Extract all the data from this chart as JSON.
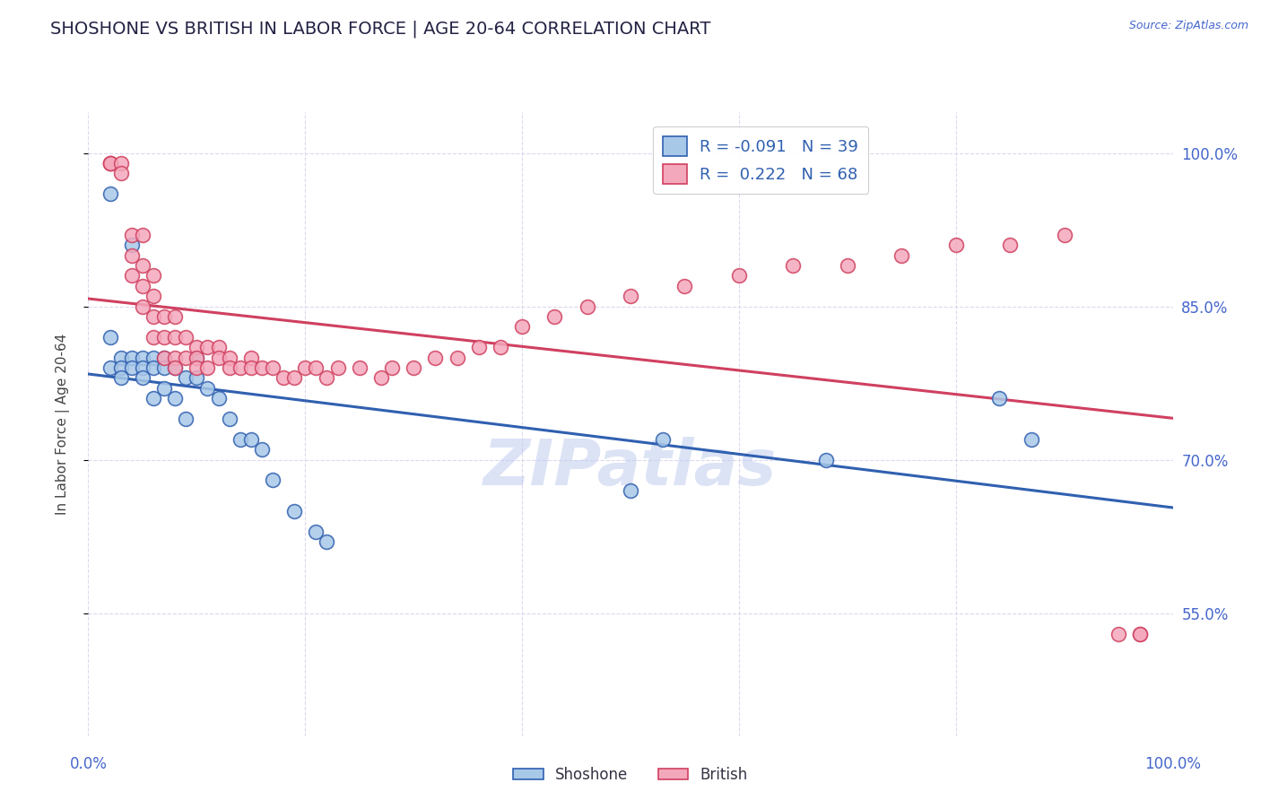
{
  "title": "SHOSHONE VS BRITISH IN LABOR FORCE | AGE 20-64 CORRELATION CHART",
  "source": "Source: ZipAtlas.com",
  "ylabel": "In Labor Force | Age 20-64",
  "y_ticks": [
    55.0,
    70.0,
    85.0,
    100.0
  ],
  "y_tick_labels": [
    "55.0%",
    "70.0%",
    "85.0%",
    "100.0%"
  ],
  "xlim": [
    0.0,
    1.0
  ],
  "ylim": [
    0.43,
    1.04
  ],
  "legend_R_shoshone": "-0.091",
  "legend_N_shoshone": "39",
  "legend_R_british": "0.222",
  "legend_N_british": "68",
  "shoshone_color": "#A8C8E8",
  "british_color": "#F4A8BC",
  "trendline_shoshone_color": "#3060B0",
  "trendline_british_color": "#D04060",
  "watermark": "ZIPatlas",
  "shoshone_x": [
    0.02,
    0.04,
    0.02,
    0.02,
    0.03,
    0.03,
    0.03,
    0.04,
    0.04,
    0.05,
    0.05,
    0.05,
    0.06,
    0.06,
    0.06,
    0.07,
    0.07,
    0.07,
    0.08,
    0.08,
    0.09,
    0.09,
    0.1,
    0.1,
    0.11,
    0.12,
    0.13,
    0.14,
    0.15,
    0.16,
    0.17,
    0.19,
    0.21,
    0.22,
    0.5,
    0.53,
    0.68,
    0.84,
    0.87
  ],
  "shoshone_y": [
    0.96,
    0.91,
    0.82,
    0.79,
    0.8,
    0.79,
    0.78,
    0.8,
    0.79,
    0.8,
    0.79,
    0.78,
    0.8,
    0.79,
    0.76,
    0.8,
    0.79,
    0.77,
    0.79,
    0.76,
    0.78,
    0.74,
    0.8,
    0.78,
    0.77,
    0.76,
    0.74,
    0.72,
    0.72,
    0.71,
    0.68,
    0.65,
    0.63,
    0.62,
    0.67,
    0.72,
    0.7,
    0.76,
    0.72
  ],
  "british_x": [
    0.02,
    0.02,
    0.02,
    0.03,
    0.03,
    0.04,
    0.04,
    0.04,
    0.05,
    0.05,
    0.05,
    0.05,
    0.06,
    0.06,
    0.06,
    0.06,
    0.07,
    0.07,
    0.07,
    0.08,
    0.08,
    0.08,
    0.08,
    0.09,
    0.09,
    0.1,
    0.1,
    0.1,
    0.11,
    0.11,
    0.12,
    0.12,
    0.13,
    0.13,
    0.14,
    0.15,
    0.15,
    0.16,
    0.17,
    0.18,
    0.19,
    0.2,
    0.21,
    0.22,
    0.23,
    0.25,
    0.27,
    0.28,
    0.3,
    0.32,
    0.34,
    0.36,
    0.38,
    0.4,
    0.43,
    0.46,
    0.5,
    0.55,
    0.6,
    0.65,
    0.7,
    0.75,
    0.8,
    0.85,
    0.9,
    0.95,
    0.97,
    0.97
  ],
  "british_y": [
    0.99,
    0.99,
    0.99,
    0.99,
    0.98,
    0.92,
    0.9,
    0.88,
    0.92,
    0.89,
    0.87,
    0.85,
    0.88,
    0.86,
    0.84,
    0.82,
    0.84,
    0.82,
    0.8,
    0.84,
    0.82,
    0.8,
    0.79,
    0.82,
    0.8,
    0.81,
    0.8,
    0.79,
    0.81,
    0.79,
    0.81,
    0.8,
    0.8,
    0.79,
    0.79,
    0.8,
    0.79,
    0.79,
    0.79,
    0.78,
    0.78,
    0.79,
    0.79,
    0.78,
    0.79,
    0.79,
    0.78,
    0.79,
    0.79,
    0.8,
    0.8,
    0.81,
    0.81,
    0.83,
    0.84,
    0.85,
    0.86,
    0.87,
    0.88,
    0.89,
    0.89,
    0.9,
    0.91,
    0.91,
    0.92,
    0.53,
    0.53,
    0.53
  ],
  "background_color": "#FFFFFF",
  "grid_color": "#DDD8EE",
  "title_color": "#222244",
  "source_color": "#4466CC",
  "axis_label_color": "#4466CC",
  "ylabel_color": "#444444"
}
